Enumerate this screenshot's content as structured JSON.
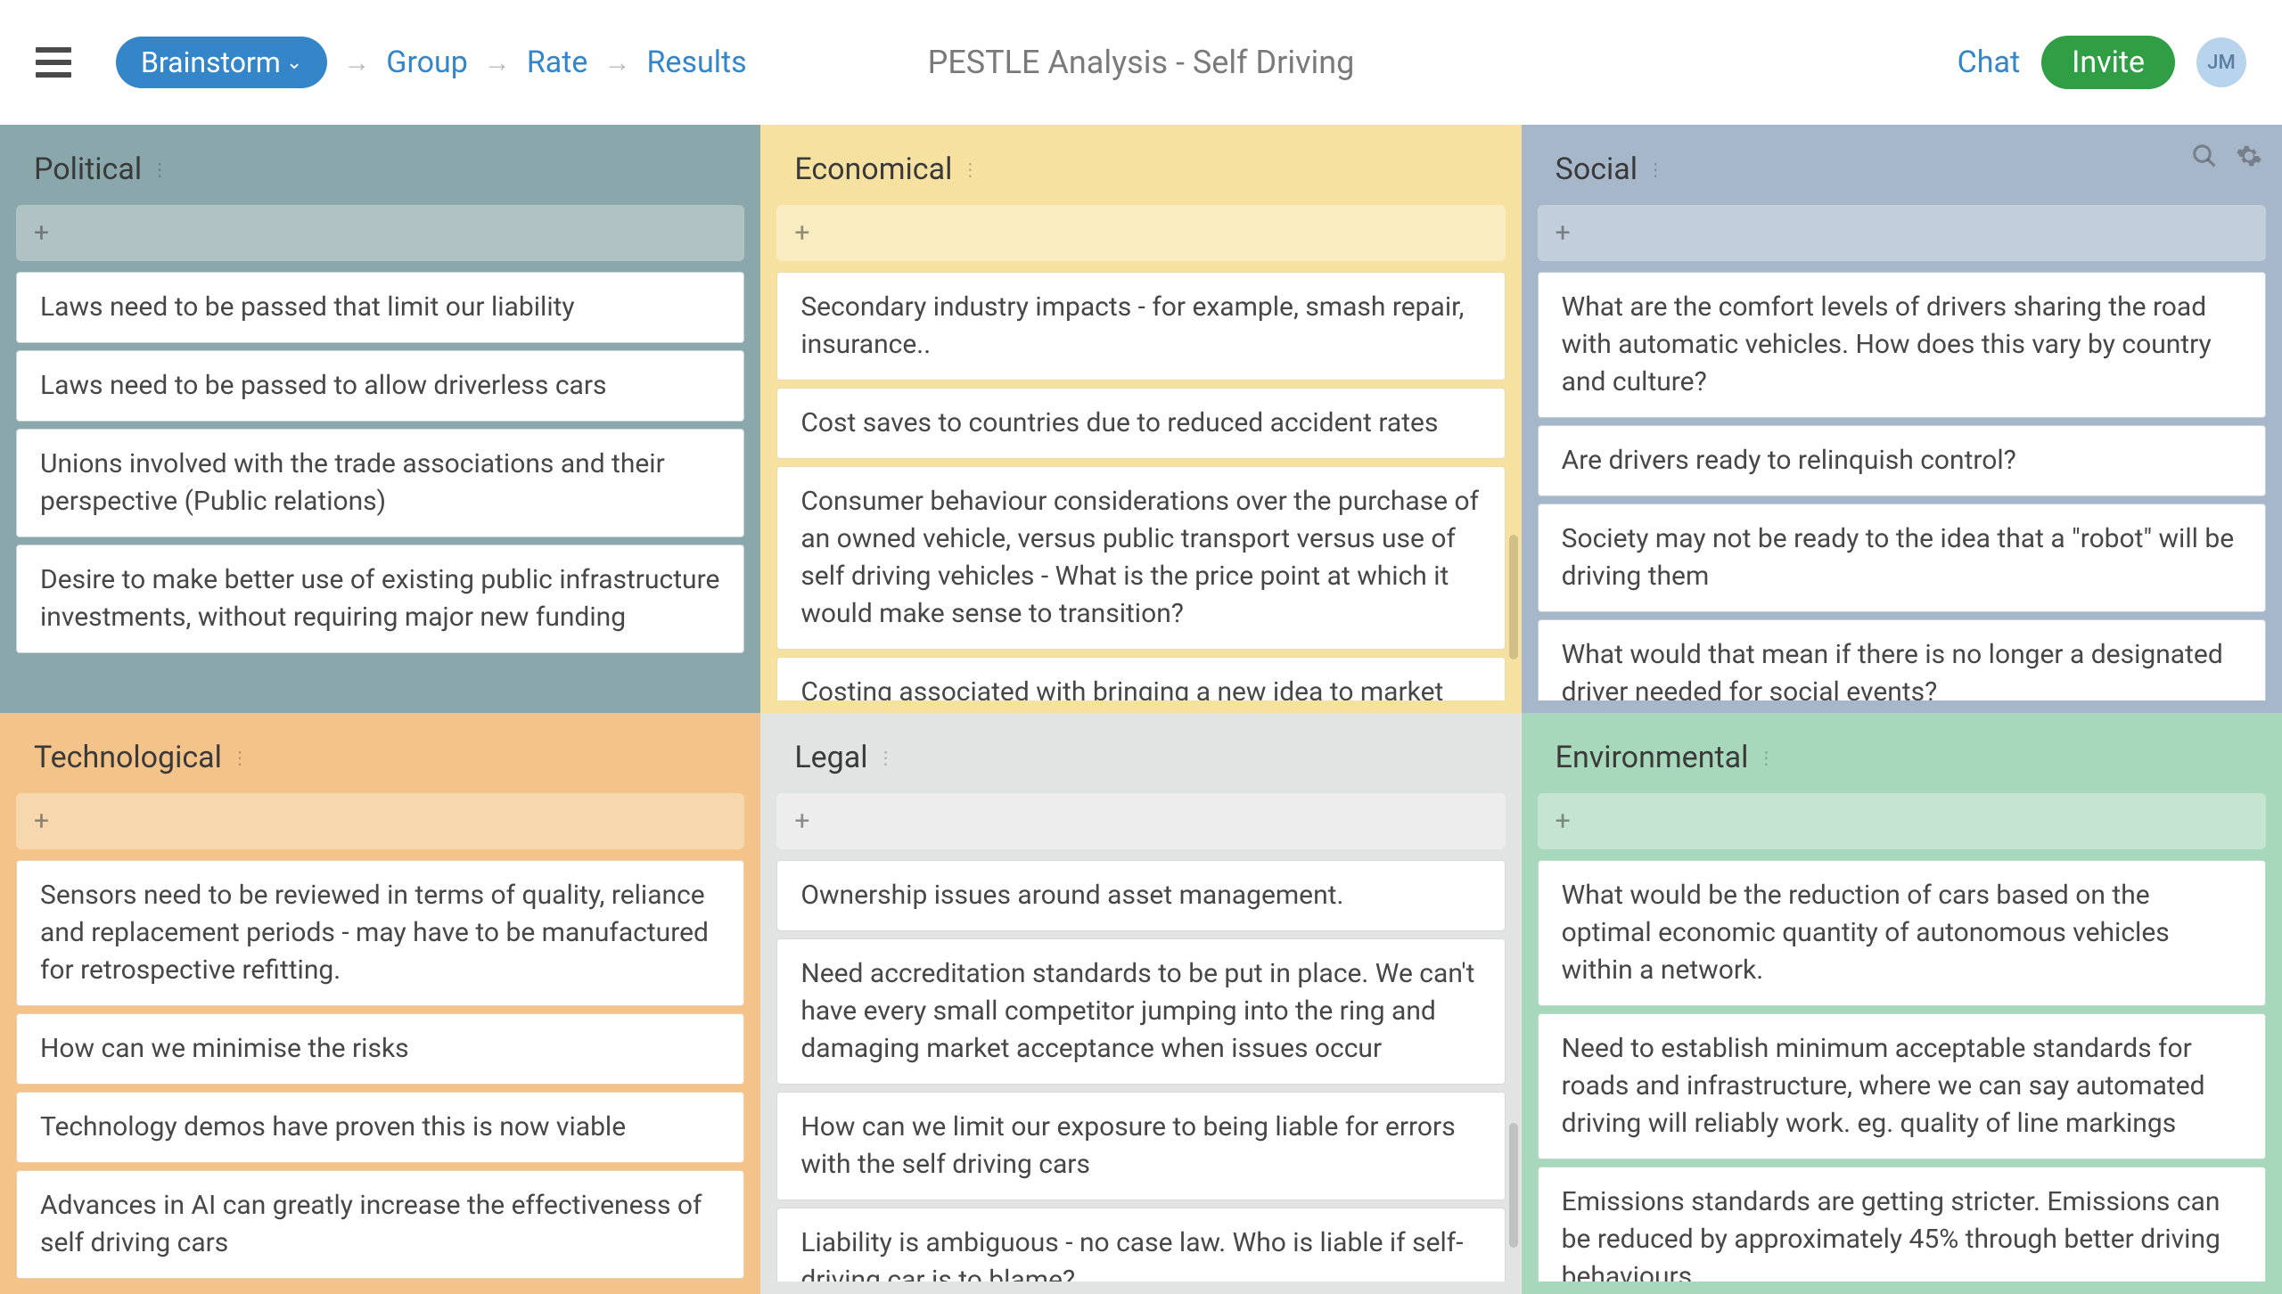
{
  "header": {
    "pill_label": "Brainstorm",
    "crumbs": [
      "Group",
      "Rate",
      "Results"
    ],
    "title": "PESTLE Analysis - Self Driving",
    "chat": "Chat",
    "invite": "Invite",
    "avatar_initials": "JM"
  },
  "columns": [
    {
      "title": "Political",
      "bg": "#8aa8ab",
      "addbar_bg": "#b0c2c3",
      "card_border": "#c9d4d4",
      "show_icons": false,
      "cards": [
        "Laws need to be passed that limit our liability",
        "Laws need to be passed to allow driverless cars",
        "Unions involved with the trade associations and their perspective (Public relations)",
        "Desire to make better use of existing public infrastructure investments, without requiring major new funding"
      ]
    },
    {
      "title": "Economical",
      "bg": "#f6e1a0",
      "addbar_bg": "#f9ecc0",
      "card_border": "#e8dca8",
      "show_icons": false,
      "show_scroll": true,
      "cards": [
        "Secondary industry impacts - for example, smash repair, insurance..",
        "Cost saves to countries due to reduced accident rates",
        "Consumer behaviour considerations over the purchase of an owned vehicle, versus public transport versus use of self driving vehicles - What is the price point at which it would make sense to transition?",
        "Costing associated with bringing a new idea to market"
      ]
    },
    {
      "title": "Social",
      "bg": "#a6b7ca",
      "addbar_bg": "#c2cedb",
      "card_border": "#c4cfdc",
      "show_icons": true,
      "cards": [
        "What are the comfort levels of drivers sharing the road with automatic vehicles. How does this vary by country and culture?",
        "Are drivers ready to relinquish control?",
        "Society may not be ready to the idea that a \"robot\" will be driving them",
        "What would that mean if there is no longer a designated driver needed for social events?"
      ]
    },
    {
      "title": "Technological",
      "bg": "#f3c38a",
      "addbar_bg": "#f7d7ae",
      "card_border": "#ecd0ab",
      "show_icons": false,
      "cards": [
        "Sensors need to be reviewed in terms of quality, reliance and replacement periods - may have to be manufactured for retrospective refitting.",
        "How can we minimise the risks",
        "Technology demos have proven this is now viable",
        "Advances in AI can greatly increase the effectiveness of self driving cars"
      ]
    },
    {
      "title": "Legal",
      "bg": "#e2e3e3",
      "addbar_bg": "#ededee",
      "card_border": "#d8d8d8",
      "show_icons": false,
      "show_scroll": true,
      "cards": [
        "Ownership issues around asset management.",
        "Need accreditation standards to be put in place. We can't have every small competitor jumping into the ring and damaging market acceptance when issues occur",
        "How can we limit our exposure to being liable for errors with the self driving cars",
        "Liability is ambiguous - no case law. Who is liable if self-driving car is to blame?"
      ]
    },
    {
      "title": "Environmental",
      "bg": "#a7d8bb",
      "addbar_bg": "#c5e5d2",
      "card_border": "#bddacb",
      "show_icons": false,
      "cards": [
        "What would be the reduction of cars based on the optimal economic quantity of autonomous vehicles within a network.",
        "Need to establish minimum acceptable standards for roads and infrastructure, where we can say automated driving will reliably work. eg. quality of line markings",
        "Emissions standards are getting stricter. Emissions can be reduced by approximately 45% through better driving behaviours"
      ]
    }
  ]
}
